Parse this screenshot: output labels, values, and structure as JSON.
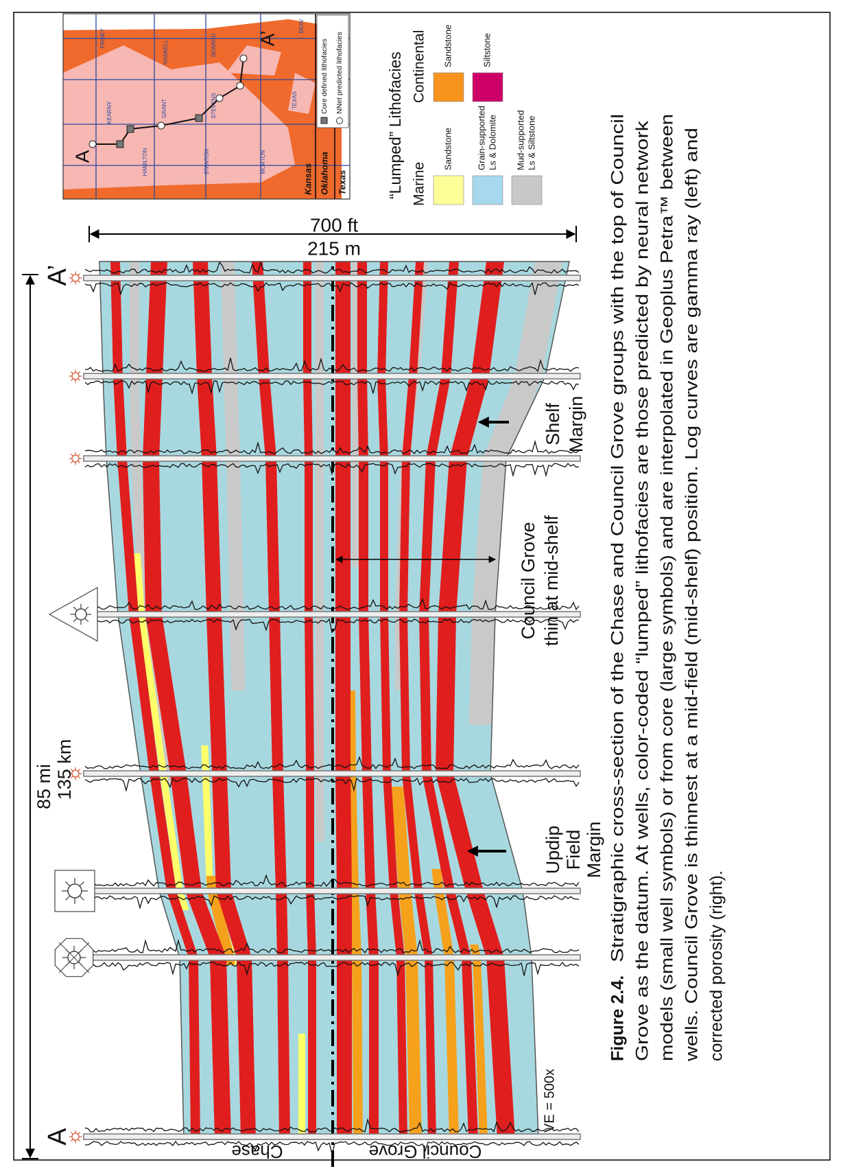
{
  "cross_section": {
    "distance_labels": [
      "85 mi",
      "135 km"
    ],
    "thickness_labels": [
      "700 ft",
      "215 m"
    ],
    "section_ends": [
      "A",
      "A’"
    ],
    "group_labels": [
      "Chase",
      "Council Grove"
    ],
    "vertical_exaggeration": "VE = 500x",
    "annotations": [
      {
        "lines": [
          "Updip",
          "Field",
          "Margin"
        ]
      },
      {
        "lines": [
          "Council Grove",
          "thin at mid-shelf"
        ]
      },
      {
        "lines": [
          "Shelf",
          "Margin"
        ]
      }
    ]
  },
  "legend": {
    "title": "“Lumped” Lithofacies",
    "groups": [
      {
        "name": "Marine",
        "items": [
          {
            "lines": [
              "Sandstone"
            ]
          },
          {
            "lines": [
              "Grain-supported",
              "Ls & Dolomite"
            ]
          },
          {
            "lines": [
              "Mud-supported",
              "Ls & Siltstone"
            ]
          }
        ]
      },
      {
        "name": "Continental",
        "items": [
          {
            "lines": [
              "Sandstone"
            ]
          },
          {
            "lines": [
              "Siltstone"
            ]
          }
        ]
      }
    ]
  },
  "map": {
    "section_ends": [
      "A",
      "A’"
    ],
    "states": [
      "Kansas",
      "Oklahoma",
      "Texas"
    ],
    "counties": [
      "HAMILTON",
      "KEARNY",
      "FINNEY",
      "GRANT",
      "HASKELL",
      "STANTON",
      "STEVENS",
      "SEWARD",
      "MORTON",
      "TEXAS",
      "BEAV"
    ],
    "legend": [
      "Core defined lithofacies",
      "NNet predicted lithofacies"
    ]
  },
  "caption": {
    "label": "Figure 2.4.",
    "lines": [
      "Stratigraphic cross-section of the Chase and Council Grove groups with the top of Council",
      "Grove as the datum.  At wells, color-coded “lumped” lithofacies are those predicted by neural network",
      "models (small well symbols) or from core (large symbols) and are interpolated in Geoplus Petra™ between",
      "wells. Council Grove is thinnest at a mid-field (mid-shelf) position. Log curves are gamma ray (left) and",
      "corrected porosity (right)."
    ]
  }
}
